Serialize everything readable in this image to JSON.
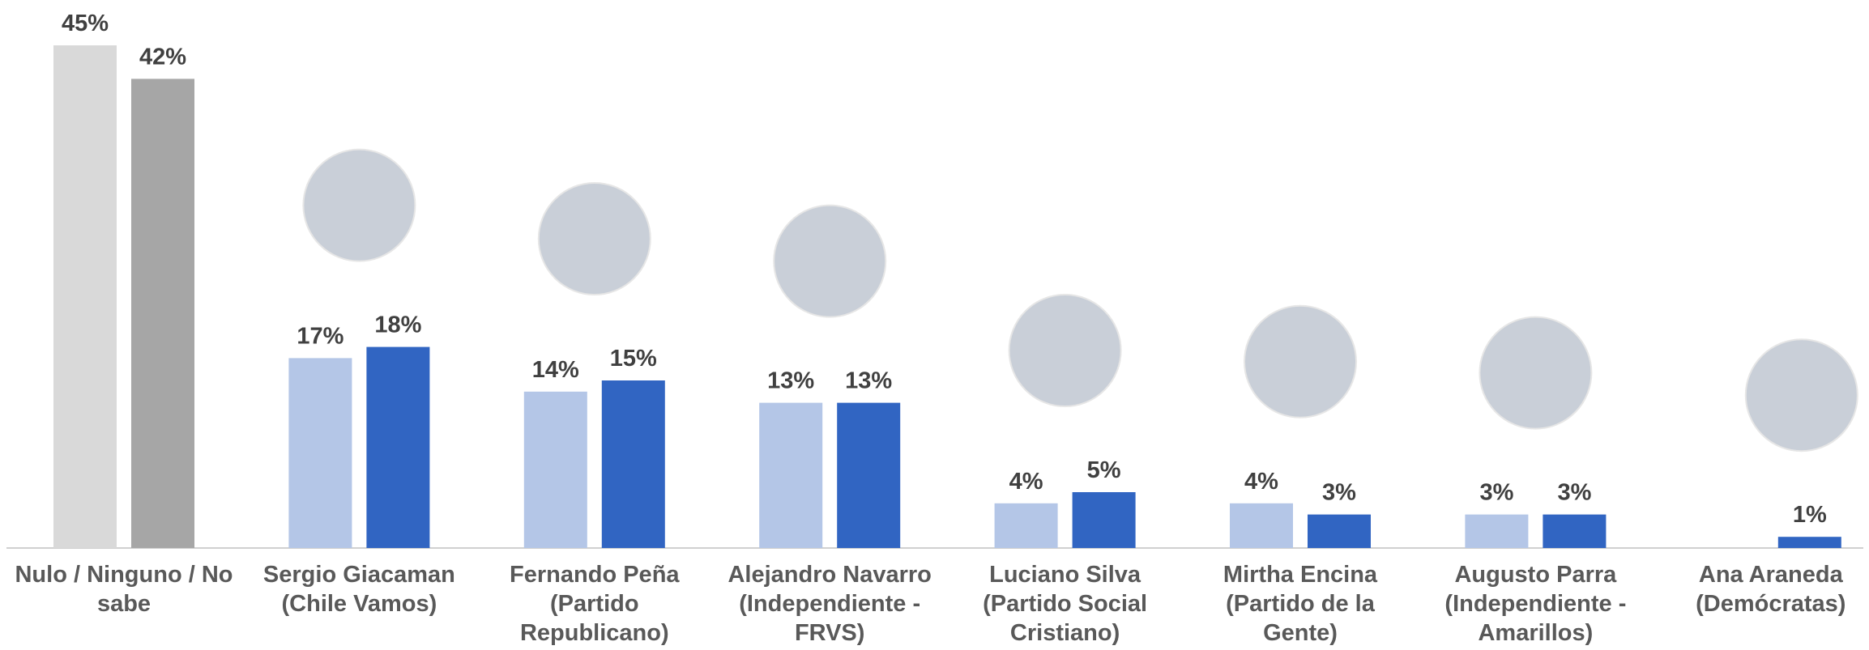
{
  "chart_data": {
    "type": "bar",
    "categories": [
      "Nulo / Ninguno / No sabe",
      "Sergio Giacaman (Chile Vamos)",
      "Fernando Peña (Partido Republicano)",
      "Alejandro Navarro (Independiente - FRVS)",
      "Luciano Silva (Partido Social Cristiano)",
      "Mirtha Encina (Partido de la Gente)",
      "Augusto Parra (Independiente - Amarillos)",
      "Ana Araneda (Demócratas)"
    ],
    "series": [
      {
        "colors": [
          "#d9d9d9",
          "#b4c6e7",
          "#b4c6e7",
          "#b4c6e7",
          "#b4c6e7",
          "#b4c6e7",
          "#b4c6e7",
          "#b4c6e7"
        ],
        "values": [
          45,
          17,
          14,
          13,
          4,
          4,
          3,
          null
        ],
        "value_labels": [
          "45%",
          "17%",
          "14%",
          "13%",
          "4%",
          "4%",
          "3%",
          null
        ]
      },
      {
        "colors": [
          "#a6a6a6",
          "#3165c2",
          "#3165c2",
          "#3165c2",
          "#3165c2",
          "#3165c2",
          "#3165c2",
          "#3165c2"
        ],
        "values": [
          42,
          18,
          15,
          13,
          5,
          3,
          3,
          1
        ],
        "value_labels": [
          "42%",
          "18%",
          "15%",
          "13%",
          "5%",
          "3%",
          "3%",
          "1%"
        ]
      }
    ]
  }
}
